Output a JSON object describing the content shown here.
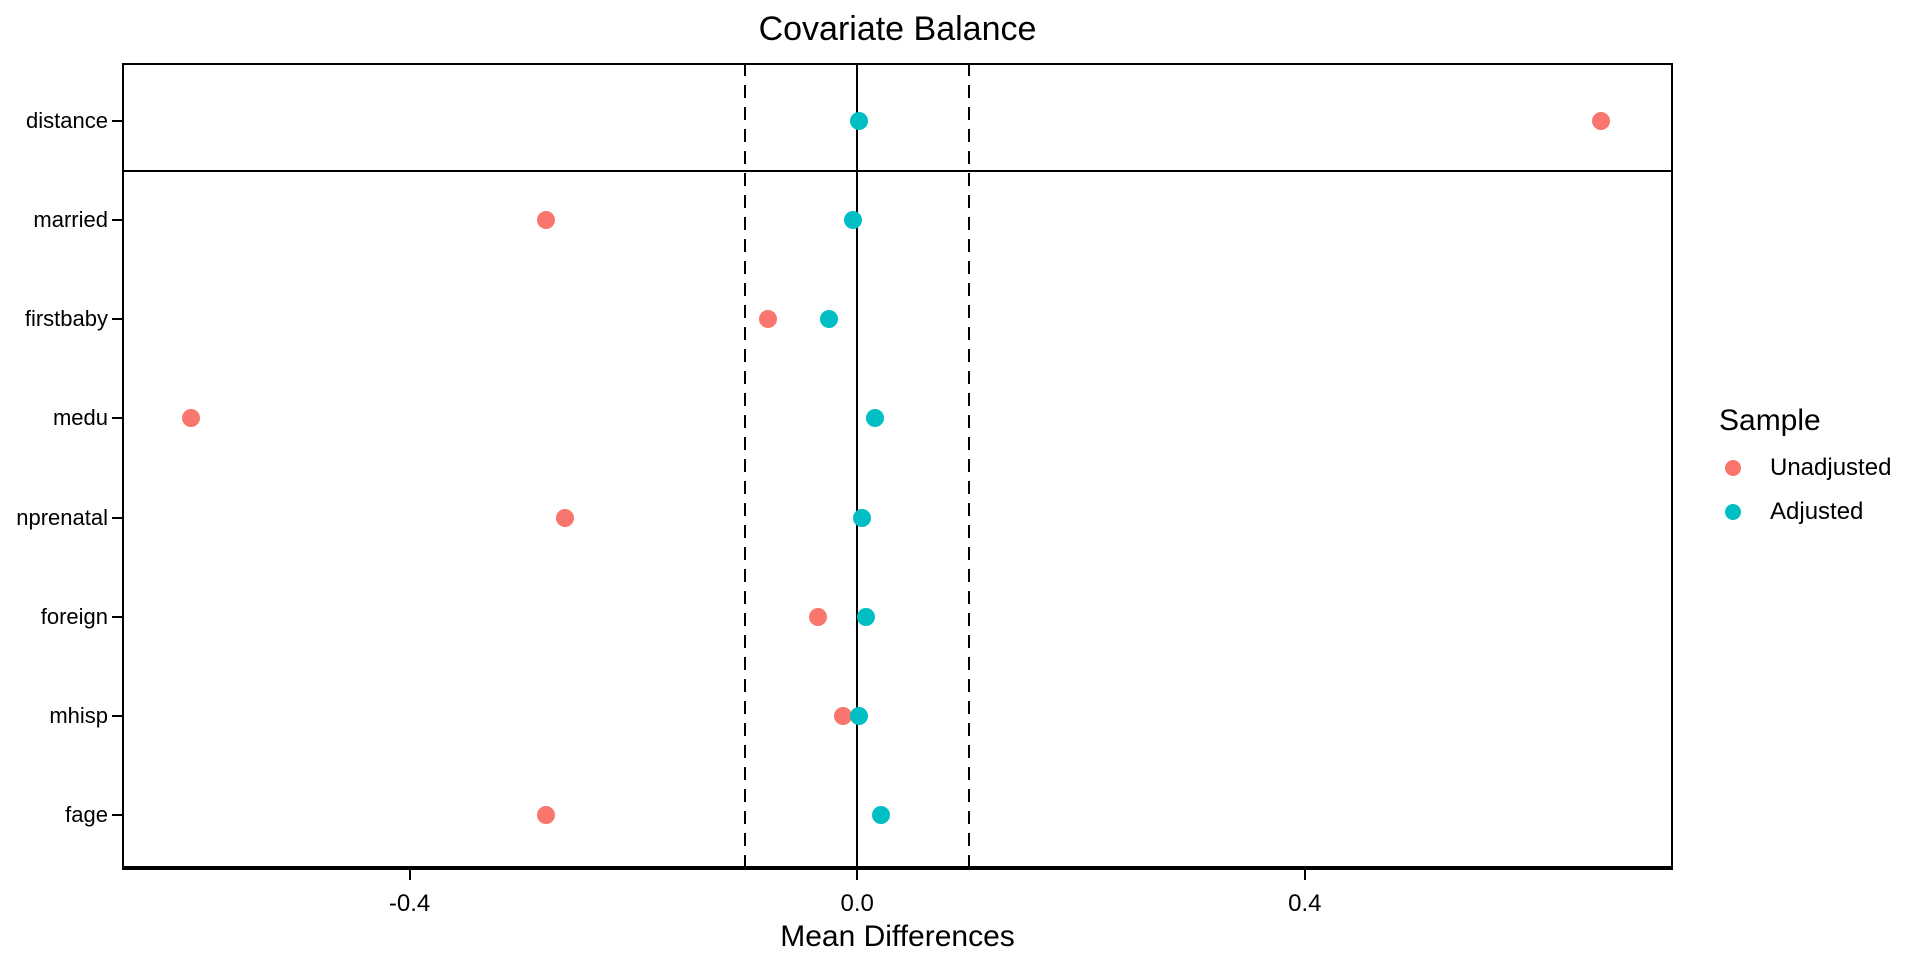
{
  "chart_data": {
    "type": "scatter",
    "title": "Covariate Balance",
    "xlabel": "Mean Differences",
    "legend_title": "Sample",
    "legend_position": "right",
    "grid": "off",
    "categories": [
      "distance",
      "married",
      "firstbaby",
      "medu",
      "nprenatal",
      "foreign",
      "mhisp",
      "fage"
    ],
    "series": [
      {
        "name": "Unadjusted",
        "color": "#F8766D",
        "values": [
          0.665,
          -0.278,
          -0.08,
          -0.595,
          -0.261,
          -0.035,
          -0.013,
          -0.278
        ]
      },
      {
        "name": "Adjusted",
        "color": "#00BFC4",
        "values": [
          0.002,
          -0.004,
          -0.025,
          0.016,
          0.004,
          0.008,
          0.002,
          0.021
        ]
      }
    ],
    "x_ticks": [
      {
        "value": -0.4,
        "label": "-0.4"
      },
      {
        "value": 0.0,
        "label": "0.0"
      },
      {
        "value": 0.4,
        "label": "0.4"
      }
    ],
    "xlim": [
      -0.657,
      0.729
    ],
    "zero_line": 0.0,
    "threshold_lines": [
      -0.1,
      0.1
    ],
    "separator_after_category": "distance"
  }
}
